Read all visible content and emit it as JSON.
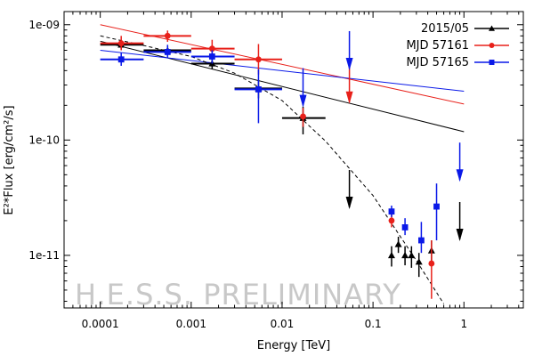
{
  "chart_data": {
    "type": "scatter",
    "xlabel": "Energy [TeV]",
    "ylabel": "E²*Flux [erg/cm²/s]",
    "x_scale": "log",
    "y_scale": "log",
    "xlim": [
      4e-05,
      4.5
    ],
    "ylim": [
      3.5e-12,
      1.3e-09
    ],
    "x_ticks": [
      {
        "value": 0.0001,
        "label": "0.0001"
      },
      {
        "value": 0.001,
        "label": "0.001"
      },
      {
        "value": 0.01,
        "label": "0.01"
      },
      {
        "value": 0.1,
        "label": "0.1"
      },
      {
        "value": 1,
        "label": "1"
      }
    ],
    "y_ticks": [
      {
        "value": 1e-11,
        "label": "1e-11"
      },
      {
        "value": 1e-10,
        "label": "1e-10"
      },
      {
        "value": 1e-09,
        "label": "1e-09"
      }
    ],
    "grid": false,
    "legend_position": "top-right",
    "watermark": "H.E.S.S. PRELIMINARY",
    "series": [
      {
        "name": "2015/05",
        "color": "#000000",
        "marker": "triangle",
        "points": [
          {
            "x": 0.00017,
            "y": 6.7e-10,
            "xerr": [
              0.0001,
              0.0003
            ],
            "yerr": [
              6.1e-10,
              7.3e-10
            ]
          },
          {
            "x": 0.00055,
            "y": 6e-10,
            "xerr": [
              0.0003,
              0.001
            ],
            "yerr": [
              5.4e-10,
              6.5e-10
            ]
          },
          {
            "x": 0.0017,
            "y": 4.6e-10,
            "xerr": [
              0.001,
              0.003
            ],
            "yerr": [
              4.1e-10,
              5.1e-10
            ]
          },
          {
            "x": 0.0055,
            "y": 2.8e-10,
            "xerr": [
              0.003,
              0.01
            ],
            "yerr": [
              2.3e-10,
              3.3e-10
            ]
          },
          {
            "x": 0.017,
            "y": 1.55e-10,
            "xerr": [
              0.01,
              0.03
            ],
            "yerr": [
              1.12e-10,
              1.95e-10
            ]
          },
          {
            "x": 0.16,
            "y": 1e-11,
            "yerr": [
              8e-12,
              1.2e-11
            ]
          },
          {
            "x": 0.19,
            "y": 1.25e-11,
            "yerr": [
              1.05e-11,
              1.45e-11
            ]
          },
          {
            "x": 0.225,
            "y": 1e-11,
            "yerr": [
              8.2e-12,
              1.2e-11
            ]
          },
          {
            "x": 0.265,
            "y": 1e-11,
            "yerr": [
              7.8e-12,
              1.2e-11
            ]
          },
          {
            "x": 0.32,
            "y": 8.8e-12,
            "yerr": [
              6.5e-12,
              1.05e-11
            ]
          },
          {
            "x": 0.44,
            "y": 1.1e-11,
            "yerr": [
              8.5e-12,
              1.35e-11
            ]
          }
        ],
        "upper_limits": [
          {
            "x": 0.055,
            "y": 5.5e-11
          },
          {
            "x": 0.9,
            "y": 2.9e-11
          }
        ]
      },
      {
        "name": "MJD 57161",
        "color": "#e8201a",
        "marker": "circle",
        "points": [
          {
            "x": 0.00017,
            "y": 6.9e-10,
            "xerr": [
              0.0001,
              0.0003
            ],
            "yerr": [
              6e-10,
              8e-10
            ]
          },
          {
            "x": 0.00055,
            "y": 8e-10,
            "xerr": [
              0.0003,
              0.001
            ],
            "yerr": [
              7.1e-10,
              8.9e-10
            ]
          },
          {
            "x": 0.0017,
            "y": 6.2e-10,
            "xerr": [
              0.001,
              0.003
            ],
            "yerr": [
              5.2e-10,
              7.4e-10
            ]
          },
          {
            "x": 0.0055,
            "y": 5e-10,
            "xerr": [
              0.003,
              0.01
            ],
            "yerr": [
              3.7e-10,
              6.8e-10
            ]
          },
          {
            "x": 0.017,
            "y": 1.6e-10,
            "yerr": [
              1.3e-10,
              1.9e-10
            ]
          },
          {
            "x": 0.16,
            "y": 2e-11,
            "yerr": [
              1.75e-11,
              2.3e-11
            ]
          },
          {
            "x": 0.44,
            "y": 8.5e-12,
            "yerr": [
              4.2e-12,
              1.35e-11
            ]
          }
        ],
        "upper_limits": [
          {
            "x": 0.055,
            "y": 4.5e-10
          }
        ]
      },
      {
        "name": "MJD 57165",
        "color": "#0a19e8",
        "marker": "square",
        "points": [
          {
            "x": 0.00017,
            "y": 5e-10,
            "xerr": [
              0.0001,
              0.0003
            ],
            "yerr": [
              4.4e-10,
              5.7e-10
            ]
          },
          {
            "x": 0.00055,
            "y": 5.8e-10,
            "xerr": [
              0.0003,
              0.001
            ],
            "yerr": [
              5.2e-10,
              6.7e-10
            ]
          },
          {
            "x": 0.0017,
            "y": 5.3e-10,
            "xerr": [
              0.001,
              0.003
            ],
            "yerr": [
              4.6e-10,
              6e-10
            ]
          },
          {
            "x": 0.0055,
            "y": 2.75e-10,
            "xerr": [
              0.003,
              0.01
            ],
            "yerr": [
              1.4e-10,
              4.1e-10
            ]
          },
          {
            "x": 0.16,
            "y": 2.4e-11,
            "yerr": [
              2.15e-11,
              2.7e-11
            ]
          },
          {
            "x": 0.225,
            "y": 1.75e-11,
            "yerr": [
              1.5e-11,
              2.1e-11
            ]
          },
          {
            "x": 0.34,
            "y": 1.35e-11,
            "yerr": [
              1.05e-11,
              1.95e-11
            ]
          },
          {
            "x": 0.5,
            "y": 2.65e-11,
            "yerr": [
              1.35e-11,
              4.2e-11
            ]
          }
        ],
        "upper_limits": [
          {
            "x": 0.017,
            "y": 4.2e-10
          },
          {
            "x": 0.055,
            "y": 8.8e-10
          },
          {
            "x": 0.9,
            "y": 9.5e-11
          }
        ]
      }
    ],
    "model_lines": [
      {
        "color": "#000000",
        "style": "solid",
        "x": [
          0.0001,
          1
        ],
        "y": [
          7.2e-10,
          1.18e-10
        ]
      },
      {
        "color": "#e8201a",
        "style": "solid",
        "x": [
          0.0001,
          1
        ],
        "y": [
          1e-09,
          2.05e-10
        ]
      },
      {
        "color": "#0a19e8",
        "style": "solid",
        "x": [
          0.0001,
          1
        ],
        "y": [
          6e-10,
          2.65e-10
        ]
      },
      {
        "color": "#000000",
        "style": "dashed",
        "x": [
          0.0001,
          0.0003,
          0.001,
          0.003,
          0.01,
          0.03,
          0.1,
          0.3,
          0.6
        ],
        "y": [
          8e-10,
          6.6e-10,
          5.3e-10,
          3.8e-10,
          2.2e-10,
          9.8e-11,
          3.3e-11,
          9e-12,
          3.8e-12
        ]
      }
    ]
  }
}
